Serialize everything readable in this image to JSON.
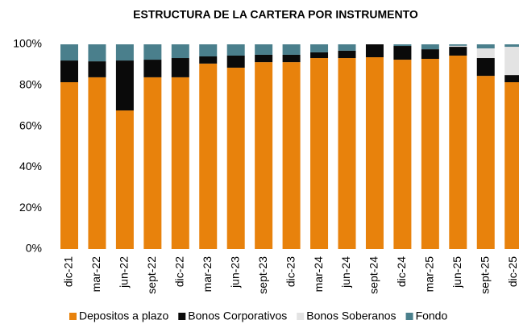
{
  "chart_data": {
    "type": "stacked_bar",
    "title": "ESTRUCTURA DE LA CARTERA POR INSTRUMENTO",
    "categories": [
      "dic-21",
      "mar-22",
      "jun-22",
      "sept-22",
      "dic-22",
      "mar-23",
      "jun-23",
      "sept-23",
      "dic-23",
      "mar-24",
      "jun-24",
      "sept-24",
      "dic-24",
      "mar-25",
      "jun-25",
      "sept-25",
      "dic-25"
    ],
    "series": [
      {
        "name": "Depositos a plazo",
        "color": "#e8820c",
        "values": [
          81.5,
          83.9,
          67.7,
          83.9,
          83.9,
          90.6,
          88.6,
          91.3,
          91.3,
          93.3,
          93.3,
          93.7,
          92.5,
          92.9,
          94.5,
          84.6,
          81.5
        ]
      },
      {
        "name": "Bonos Corporativos",
        "color": "#0a0a0a",
        "values": [
          10.6,
          7.8,
          24.4,
          8.6,
          9.4,
          3.5,
          5.9,
          3.6,
          3.6,
          2.8,
          3.6,
          6.3,
          6.7,
          4.7,
          4.3,
          8.7,
          3.5
        ]
      },
      {
        "name": "Bonos Soberanos",
        "color": "#e3e3e3",
        "values": [
          0,
          0,
          0,
          0,
          0,
          0,
          0,
          0,
          0,
          0,
          0,
          0,
          0,
          0,
          0.5,
          4.7,
          13.8
        ]
      },
      {
        "name": "Fondo",
        "color": "#4a7f8c",
        "values": [
          7.9,
          8.3,
          7.9,
          7.5,
          6.7,
          5.9,
          5.5,
          5.1,
          5.1,
          3.9,
          3.1,
          0,
          0.8,
          2.4,
          0.7,
          2.0,
          1.2
        ]
      }
    ],
    "ylim": [
      0,
      100
    ],
    "yticks": [
      {
        "value": 0,
        "label": "0%"
      },
      {
        "value": 20,
        "label": "20%"
      },
      {
        "value": 40,
        "label": "40%"
      },
      {
        "value": 60,
        "label": "60%"
      },
      {
        "value": 80,
        "label": "80%"
      },
      {
        "value": 100,
        "label": "100%"
      }
    ],
    "legend": "bottom"
  }
}
